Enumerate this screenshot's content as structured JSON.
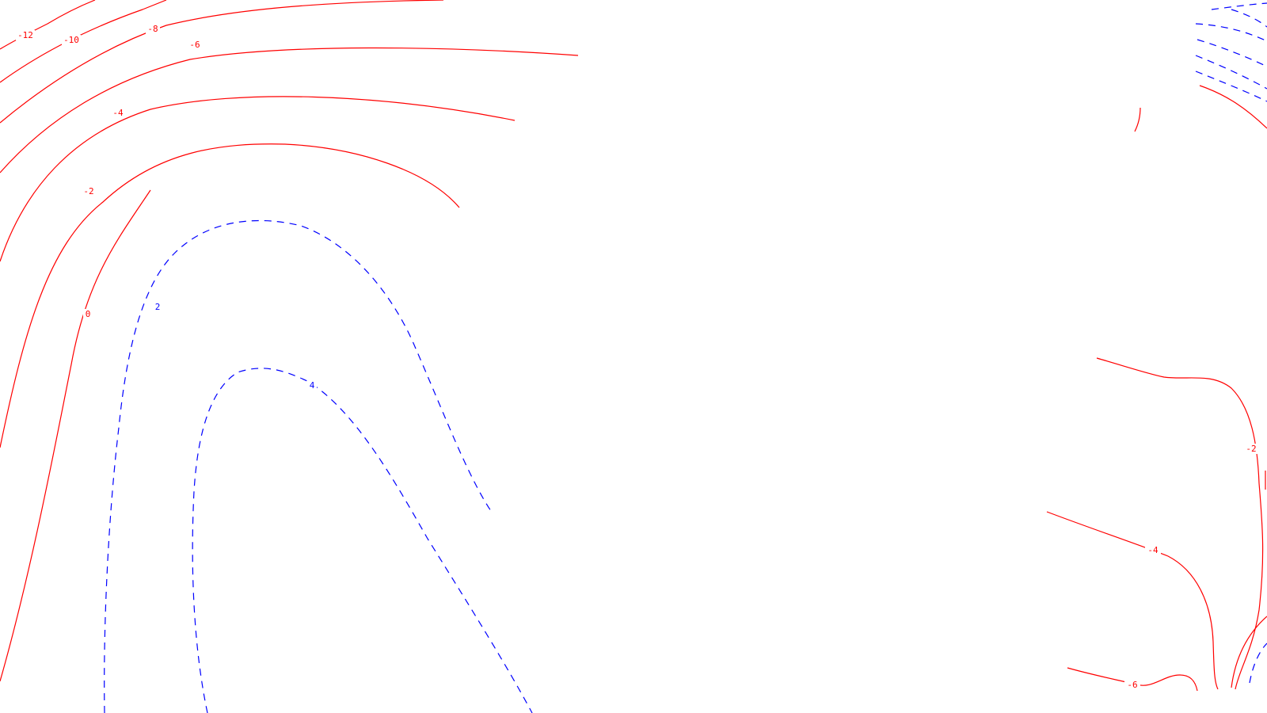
{
  "map": {
    "colors": {
      "negative": "#ff0000",
      "positive": "#0000ff",
      "background": "#ffffff"
    },
    "labels": {
      "m12": "-12",
      "m10": "-10",
      "m8": "-8",
      "m6": "-6",
      "m4": "-4",
      "m2": "-2",
      "zero": "0",
      "p2": "2",
      "p4": "4",
      "right_m2": "-2",
      "right_m4": "-4",
      "right_m6": "-6"
    }
  }
}
